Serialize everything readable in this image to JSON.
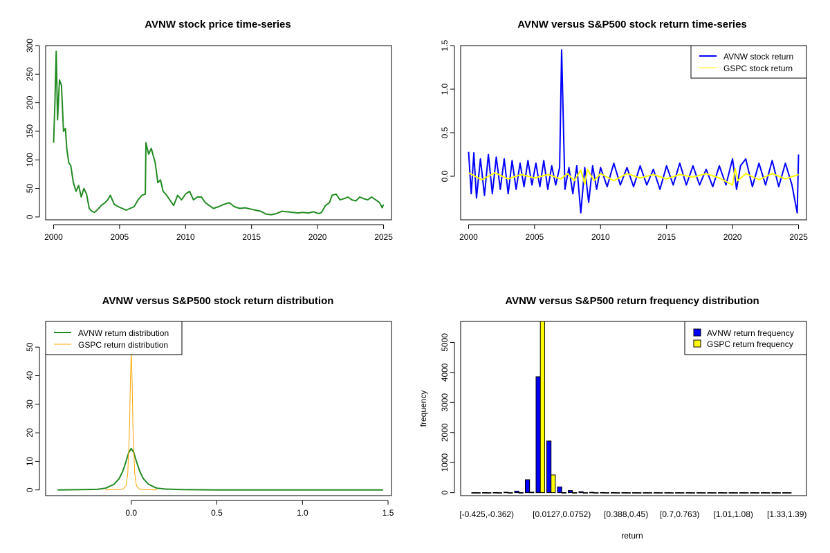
{
  "colors": {
    "price": "#228B22",
    "avnw_return": "#0000FF",
    "gspc_return": "#FFFF00",
    "density_avnw": "#228B22",
    "density_gspc": "#FFA500",
    "hist_avnw": "#0000FF",
    "hist_gspc": "#FFFF00"
  },
  "chart_data": [
    {
      "id": "price",
      "type": "line",
      "title": "AVNW stock price time-series",
      "xlabel": "",
      "ylabel": "",
      "xlim": [
        1999.4,
        2025.6
      ],
      "ylim": [
        -5,
        300
      ],
      "xticks": [
        2000,
        2005,
        2010,
        2015,
        2020,
        2025
      ],
      "yticks": [
        0,
        50,
        100,
        150,
        200,
        250,
        300
      ],
      "series": [
        {
          "name": "AVNW price",
          "x": [
            2000.0,
            2000.1,
            2000.2,
            2000.3,
            2000.45,
            2000.6,
            2000.75,
            2000.9,
            2001.0,
            2001.15,
            2001.3,
            2001.5,
            2001.7,
            2001.9,
            2002.1,
            2002.3,
            2002.5,
            2002.7,
            2002.9,
            2003.1,
            2003.3,
            2003.6,
            2003.9,
            2004.1,
            2004.3,
            2004.6,
            2004.9,
            2005.2,
            2005.5,
            2005.8,
            2006.1,
            2006.4,
            2006.7,
            2006.95,
            2007.0,
            2007.2,
            2007.4,
            2007.7,
            2007.9,
            2008.1,
            2008.3,
            2008.5,
            2008.8,
            2009.1,
            2009.4,
            2009.7,
            2010.0,
            2010.3,
            2010.6,
            2010.9,
            2011.2,
            2011.5,
            2011.8,
            2012.1,
            2012.5,
            2012.9,
            2013.3,
            2013.7,
            2014.1,
            2014.5,
            2014.9,
            2015.3,
            2015.7,
            2016.1,
            2016.5,
            2016.9,
            2017.3,
            2017.7,
            2018.1,
            2018.5,
            2018.9,
            2019.3,
            2019.7,
            2020.1,
            2020.3,
            2020.6,
            2020.9,
            2021.1,
            2021.4,
            2021.7,
            2022.0,
            2022.3,
            2022.6,
            2022.9,
            2023.2,
            2023.5,
            2023.8,
            2024.1,
            2024.4,
            2024.7,
            2024.9,
            2025.0
          ],
          "y": [
            130,
            200,
            290,
            170,
            240,
            230,
            150,
            155,
            120,
            95,
            90,
            60,
            45,
            55,
            35,
            50,
            40,
            15,
            10,
            8,
            12,
            20,
            25,
            30,
            38,
            22,
            18,
            15,
            12,
            15,
            18,
            30,
            38,
            40,
            130,
            110,
            120,
            95,
            60,
            65,
            45,
            40,
            30,
            20,
            38,
            30,
            40,
            45,
            30,
            35,
            35,
            25,
            20,
            15,
            18,
            22,
            25,
            18,
            15,
            16,
            14,
            12,
            10,
            5,
            4,
            6,
            10,
            9,
            8,
            7,
            8,
            7,
            9,
            6,
            8,
            20,
            25,
            38,
            40,
            30,
            32,
            35,
            30,
            28,
            35,
            32,
            30,
            35,
            30,
            25,
            16,
            22
          ]
        }
      ]
    },
    {
      "id": "returns",
      "type": "line",
      "title": "AVNW versus S&P500 stock return time-series",
      "xlabel": "",
      "ylabel": "",
      "xlim": [
        1999.4,
        2025.6
      ],
      "ylim": [
        -0.5,
        1.5
      ],
      "xticks": [
        2000,
        2005,
        2010,
        2015,
        2020,
        2025
      ],
      "yticks": [
        0.0,
        0.5,
        1.0,
        1.5
      ],
      "legend": [
        "AVNW stock return",
        "GSPC stock return"
      ],
      "legend_position": "top-right",
      "series": [
        {
          "name": "AVNW stock return",
          "x": [
            2000.0,
            2000.2,
            2000.4,
            2000.6,
            2000.9,
            2001.2,
            2001.5,
            2001.8,
            2002.1,
            2002.4,
            2002.7,
            2003.0,
            2003.3,
            2003.6,
            2003.9,
            2004.2,
            2004.5,
            2004.8,
            2005.1,
            2005.4,
            2005.7,
            2006.0,
            2006.3,
            2006.6,
            2006.9,
            2007.05,
            2007.3,
            2007.6,
            2007.9,
            2008.2,
            2008.5,
            2008.8,
            2009.1,
            2009.4,
            2009.7,
            2010.0,
            2010.5,
            2011.0,
            2011.5,
            2012.0,
            2012.5,
            2013.0,
            2013.5,
            2014.0,
            2014.5,
            2015.0,
            2015.5,
            2016.0,
            2016.5,
            2017.0,
            2017.5,
            2018.0,
            2018.5,
            2019.0,
            2019.5,
            2020.0,
            2020.3,
            2020.6,
            2021.0,
            2021.5,
            2022.0,
            2022.5,
            2023.0,
            2023.5,
            2024.0,
            2024.5,
            2024.9,
            2025.0
          ],
          "y": [
            0.28,
            -0.2,
            0.27,
            -0.25,
            0.2,
            -0.22,
            0.25,
            -0.2,
            0.22,
            -0.15,
            0.2,
            -0.2,
            0.18,
            -0.15,
            0.15,
            -0.12,
            0.18,
            -0.1,
            0.15,
            -0.12,
            0.18,
            -0.15,
            0.12,
            -0.1,
            0.1,
            1.45,
            -0.15,
            0.1,
            -0.2,
            0.12,
            -0.42,
            0.1,
            -0.3,
            0.12,
            -0.15,
            0.1,
            -0.12,
            0.15,
            -0.1,
            0.1,
            -0.12,
            0.12,
            -0.1,
            0.08,
            -0.15,
            0.12,
            -0.1,
            0.15,
            -0.1,
            0.12,
            -0.1,
            0.08,
            -0.12,
            0.12,
            -0.1,
            0.2,
            -0.15,
            0.12,
            0.2,
            -0.12,
            0.15,
            -0.1,
            0.18,
            -0.12,
            0.15,
            -0.1,
            -0.42,
            0.25
          ]
        },
        {
          "name": "GSPC stock return",
          "x": [
            2000.0,
            2001.0,
            2002.0,
            2003.0,
            2004.0,
            2005.0,
            2006.0,
            2007.0,
            2007.5,
            2008.0,
            2008.5,
            2008.8,
            2009.0,
            2009.5,
            2010.0,
            2011.0,
            2012.0,
            2013.0,
            2014.0,
            2015.0,
            2016.0,
            2017.0,
            2018.0,
            2019.0,
            2020.0,
            2020.2,
            2020.4,
            2021.0,
            2022.0,
            2023.0,
            2024.0,
            2025.0
          ],
          "y": [
            0.04,
            -0.04,
            0.04,
            -0.03,
            0.02,
            -0.02,
            0.02,
            -0.03,
            0.03,
            -0.05,
            0.07,
            -0.09,
            0.08,
            -0.05,
            0.03,
            -0.05,
            0.03,
            -0.02,
            0.02,
            -0.03,
            0.02,
            -0.01,
            0.03,
            -0.02,
            -0.1,
            0.09,
            -0.05,
            0.03,
            -0.04,
            0.03,
            -0.03,
            0.02
          ]
        }
      ]
    },
    {
      "id": "density",
      "type": "line",
      "title": "AVNW versus S&P500 stock return distribution",
      "xlabel": "",
      "ylabel": "",
      "xlim": [
        -0.5,
        1.52
      ],
      "ylim": [
        -2,
        59
      ],
      "xticks": [
        0.0,
        0.5,
        1.0,
        1.5
      ],
      "yticks": [
        0,
        10,
        20,
        30,
        40,
        50
      ],
      "legend": [
        "AVNW return distribution",
        "GSPC return distribution"
      ],
      "legend_position": "top-left",
      "series": [
        {
          "name": "AVNW return distribution",
          "x": [
            -0.43,
            -0.2,
            -0.15,
            -0.1,
            -0.07,
            -0.05,
            -0.03,
            -0.015,
            0.0,
            0.015,
            0.03,
            0.05,
            0.07,
            0.1,
            0.15,
            0.2,
            0.3,
            0.5,
            1.0,
            1.47
          ],
          "y": [
            0,
            0.2,
            0.6,
            2.0,
            4.0,
            6.5,
            10.0,
            13.0,
            14.5,
            13.0,
            10.0,
            6.5,
            4.0,
            2.0,
            0.6,
            0.3,
            0.1,
            0,
            0,
            0
          ]
        },
        {
          "name": "GSPC return distribution",
          "x": [
            -0.15,
            -0.05,
            -0.03,
            -0.02,
            -0.01,
            -0.005,
            0.0,
            0.005,
            0.01,
            0.02,
            0.03,
            0.05,
            0.15
          ],
          "y": [
            0,
            0.2,
            1.5,
            6.0,
            22.0,
            38.0,
            49.0,
            38.0,
            22.0,
            6.0,
            1.5,
            0.2,
            0
          ]
        }
      ]
    },
    {
      "id": "histogram",
      "type": "bar",
      "title": "AVNW versus S&P500 return frequency distribution",
      "xlabel": "return",
      "ylabel": "frequency",
      "ylim": [
        -100,
        5700
      ],
      "yticks": [
        0,
        1000,
        2000,
        3000,
        4000,
        5000
      ],
      "legend": [
        "AVNW return frequency",
        "GSPC return frequency"
      ],
      "legend_position": "top-right",
      "x_tick_labels": [
        "[-0.425,-0.362)",
        "[0.0127,0.0752)",
        "[0.388,0.45)",
        "[0.7,0.763)",
        "[1.01,1.08)",
        "[1.33,1.39)"
      ],
      "x_tick_groups": [
        1,
        8,
        14,
        19,
        24,
        29
      ],
      "n_groups": 30,
      "series": [
        {
          "name": "AVNW return frequency",
          "values": [
            1,
            2,
            5,
            15,
            50,
            430,
            3860,
            1720,
            190,
            70,
            30,
            12,
            5,
            3,
            2,
            1,
            1,
            1,
            1,
            1,
            1,
            1,
            1,
            1,
            1,
            1,
            1,
            1,
            1,
            1
          ]
        },
        {
          "name": "GSPC return frequency",
          "values": [
            0,
            0,
            0,
            0,
            1,
            15,
            5700,
            590,
            2,
            0,
            0,
            0,
            0,
            0,
            0,
            0,
            0,
            0,
            0,
            0,
            0,
            0,
            0,
            0,
            0,
            0,
            0,
            0,
            0,
            0
          ]
        }
      ]
    }
  ]
}
